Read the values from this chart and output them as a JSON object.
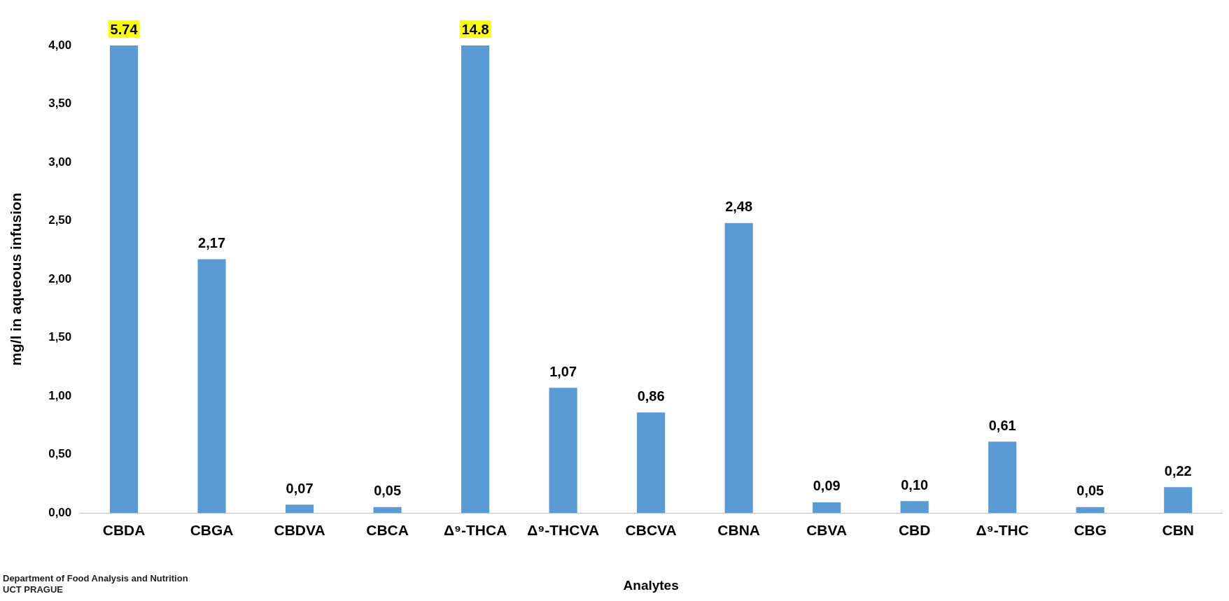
{
  "chart_data": {
    "type": "bar",
    "xlabel": "Analytes",
    "ylabel": "mg/l in aqueous infusion",
    "categories": [
      "CBDA",
      "CBGA",
      "CBDVA",
      "CBCA",
      "Δ⁹-THCA",
      "Δ⁹-THCVA",
      "CBCVA",
      "CBNA",
      "CBVA",
      "CBD",
      "Δ⁹-THC",
      "CBG",
      "CBN"
    ],
    "values": [
      4.0,
      2.17,
      0.07,
      0.05,
      4.0,
      1.07,
      0.86,
      2.48,
      0.09,
      0.1,
      0.61,
      0.05,
      0.22
    ],
    "value_labels": [
      null,
      "2,17",
      "0,07",
      "0,05",
      null,
      "1,07",
      "0,86",
      "2,48",
      "0,09",
      "0,10",
      "0,61",
      "0,05",
      "0,22"
    ],
    "color": "#5b9bd5",
    "ylim": [
      0,
      4
    ],
    "yticks": [
      {
        "value": 0,
        "label": "0,00"
      },
      {
        "value": 0.5,
        "label": "0,50"
      },
      {
        "value": 1,
        "label": "1,00"
      },
      {
        "value": 1.5,
        "label": "1,50"
      },
      {
        "value": 2,
        "label": "2,00"
      },
      {
        "value": 2.5,
        "label": "2,50"
      },
      {
        "value": 3,
        "label": "3,00"
      },
      {
        "value": 3.5,
        "label": "3,50"
      },
      {
        "value": 4,
        "label": "4,00"
      }
    ],
    "grid": false,
    "legend": false,
    "annotations": [
      {
        "text": "5.74",
        "x": "CBDA",
        "y": 4
      },
      {
        "text": "14.8",
        "x": "Δ⁹-THCA",
        "y": 4
      },
      "Department of Food Analysis and Nutrition",
      "UCT PRAGUE"
    ]
  }
}
